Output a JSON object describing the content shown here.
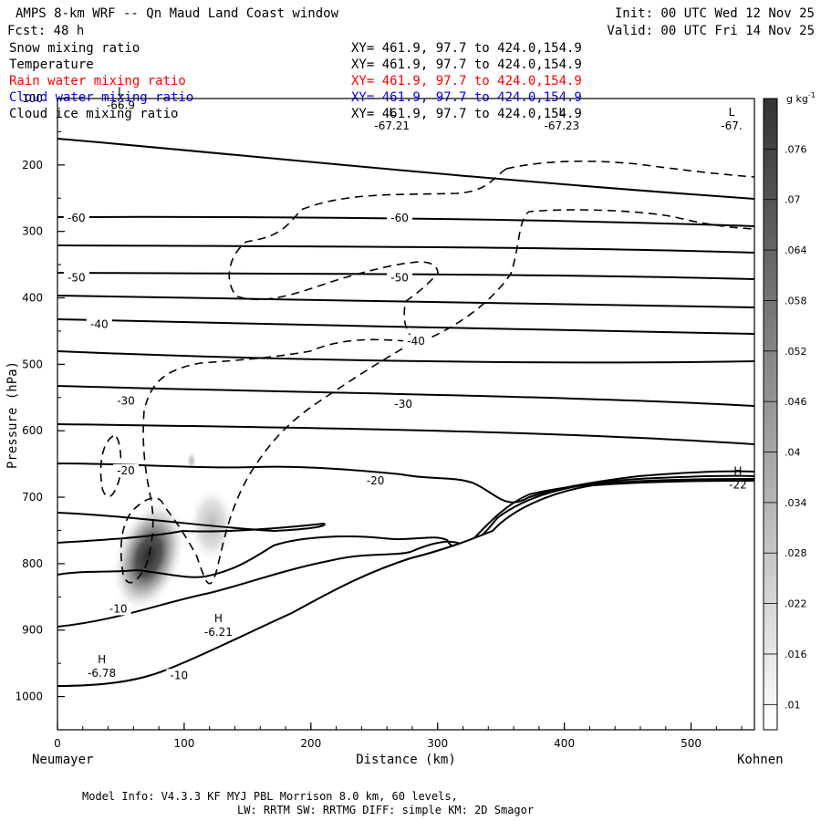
{
  "header": {
    "title": "AMPS 8-km WRF -- Qn Maud Land Coast window",
    "forecast": "Fcst:   48 h",
    "init": "Init: 00 UTC Wed 12 Nov 25",
    "valid": "Valid: 00 UTC Fri 14 Nov 25"
  },
  "fields": [
    {
      "name": "Snow mixing ratio",
      "xy": "XY= 461.9, 97.7 to 424.0,154.9",
      "color": "#000000"
    },
    {
      "name": "Temperature",
      "xy": "XY= 461.9, 97.7 to 424.0,154.9",
      "color": "#000000"
    },
    {
      "name": "Rain water mixing ratio",
      "xy": "XY= 461.9, 97.7 to 424.0,154.9",
      "color": "#ff0000"
    },
    {
      "name": "Cloud water mixing ratio",
      "xy": "XY= 461.9, 97.7 to 424.0,154.9",
      "color": "#0000ff"
    },
    {
      "name": "Cloud ice mixing ratio",
      "xy": "XY= 461.9, 97.7 to 424.0,154.9",
      "color": "#000000"
    }
  ],
  "chart_data": {
    "type": "heatmap",
    "xlabel": "Distance (km)",
    "ylabel": "Pressure (hPa)",
    "xlim": [
      0,
      550
    ],
    "ylim": [
      1050,
      100
    ],
    "x_ticks": [
      0,
      100,
      200,
      300,
      400,
      500
    ],
    "y_ticks": [
      100,
      200,
      300,
      400,
      500,
      600,
      700,
      800,
      900,
      1000
    ],
    "start_label": "Neumayer",
    "end_label": "Kohnen",
    "colorbar": {
      "unit": "g kg",
      "unit_exp": "-1",
      "levels": [
        ".01",
        ".016",
        ".022",
        ".028",
        ".034",
        ".04",
        ".046",
        ".052",
        ".058",
        ".064",
        ".07",
        ".076"
      ],
      "min": 0.007,
      "max": 0.082
    },
    "isotherm_labels": [
      {
        "text": "-60",
        "x": 15,
        "p": 280
      },
      {
        "text": "-60",
        "x": 270,
        "p": 280
      },
      {
        "text": "-50",
        "x": 15,
        "p": 370
      },
      {
        "text": "-50",
        "x": 270,
        "p": 370
      },
      {
        "text": "-40",
        "x": 33,
        "p": 440
      },
      {
        "text": "-40",
        "x": 283,
        "p": 465
      },
      {
        "text": "-30",
        "x": 54,
        "p": 555
      },
      {
        "text": "-30",
        "x": 273,
        "p": 560
      },
      {
        "text": "-20",
        "x": 54,
        "p": 660
      },
      {
        "text": "-20",
        "x": 251,
        "p": 675
      },
      {
        "text": "-10",
        "x": 48,
        "p": 868
      },
      {
        "text": "-10",
        "x": 96,
        "p": 968
      }
    ],
    "extrema": [
      {
        "kind": "L",
        "value": "-66.9",
        "x": 50,
        "p": 95
      },
      {
        "kind": "L",
        "value": "-67.21",
        "x": 264,
        "p": 126
      },
      {
        "kind": "L",
        "value": "-67.23",
        "x": 398,
        "p": 126
      },
      {
        "kind": "L",
        "value": "-67.",
        "x": 532,
        "p": 126
      },
      {
        "kind": "H",
        "value": "-6.21",
        "x": 127,
        "p": 888
      },
      {
        "kind": "H",
        "value": "-6.78",
        "x": 35,
        "p": 950
      },
      {
        "kind": "H",
        "value": "-22",
        "x": 537,
        "p": 666
      }
    ]
  },
  "footer": {
    "line1": "Model Info: V4.3.3   KF      MYJ PBL  Morrison               8.0 km,  60 levels,",
    "line2": "LW: RRTM SW: RRTMG   DIFF: simple KM: 2D Smagor"
  }
}
